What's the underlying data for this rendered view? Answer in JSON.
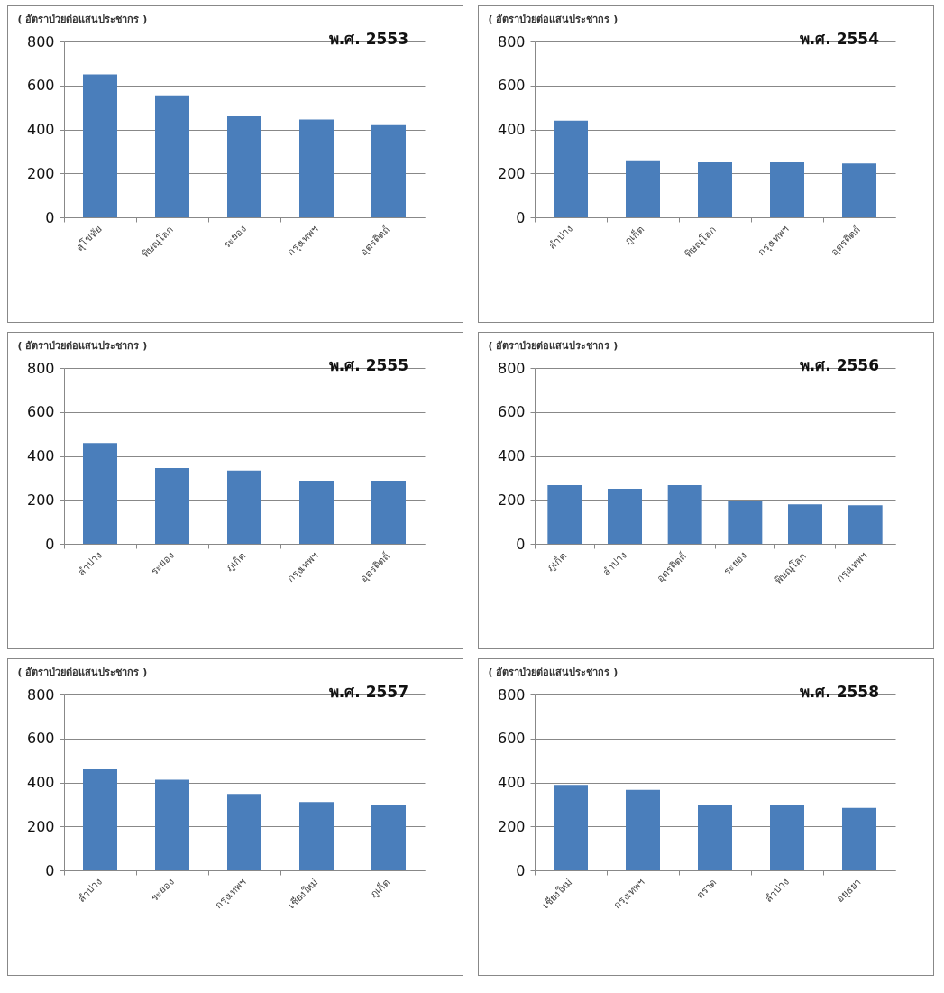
{
  "chart_data": [
    {
      "type": "bar",
      "title": "พ.ศ. 2553",
      "ylabel": "( อัตราป่วยต่อแสนประชากร )",
      "categories": [
        "สุโขทัย",
        "พิษณุโลก",
        "ระยอง",
        "กรุงเทพฯ",
        "อุตรดิตถ์"
      ],
      "values": [
        650,
        555,
        460,
        445,
        420
      ],
      "color": "#4a7ebb",
      "ylim": [
        0,
        800
      ],
      "yticks": [
        0,
        200,
        400,
        600,
        800
      ],
      "grid": "y"
    },
    {
      "type": "bar",
      "title": "พ.ศ. 2554",
      "ylabel": "( อัตราป่วยต่อแสนประชากร )",
      "categories": [
        "ลำปาง",
        "ภูเก็ต",
        "พิษณุโลก",
        "กรุงเทพฯ",
        "อุตรดิตถ์"
      ],
      "values": [
        440,
        260,
        250,
        250,
        245
      ],
      "color": "#4a7ebb",
      "ylim": [
        0,
        800
      ],
      "yticks": [
        0,
        200,
        400,
        600,
        800
      ],
      "grid": "y"
    },
    {
      "type": "bar",
      "title": "พ.ศ. 2555",
      "ylabel": "( อัตราป่วยต่อแสนประชากร )",
      "categories": [
        "ลำปาง",
        "ระยอง",
        "ภูเก็ต",
        "กรุงเทพฯ",
        "อุตรดิตถ์"
      ],
      "values": [
        458,
        345,
        333,
        287,
        287
      ],
      "color": "#4a7ebb",
      "ylim": [
        0,
        800
      ],
      "yticks": [
        0,
        200,
        400,
        600,
        800
      ],
      "grid": "y"
    },
    {
      "type": "bar",
      "title": "พ.ศ. 2556",
      "ylabel": "( อัตราป่วยต่อแสนประชากร )",
      "categories": [
        "ภูเก็ต",
        "ลำปาง",
        "อุตรดิตถ์",
        "ระยอง",
        "พิษณุโลก",
        "กรุงเทพฯ"
      ],
      "values": [
        267,
        250,
        267,
        196,
        180,
        175
      ],
      "color": "#4a7ebb",
      "ylim": [
        0,
        800
      ],
      "yticks": [
        0,
        200,
        400,
        600,
        800
      ],
      "grid": "y"
    },
    {
      "type": "bar",
      "title": "พ.ศ. 2557",
      "ylabel": "( อัตราป่วยต่อแสนประชากร )",
      "categories": [
        "ลำปาง",
        "ระยอง",
        "กรุงเทพฯ",
        "เชียงใหม่",
        "ภูเก็ต"
      ],
      "values": [
        460,
        412,
        348,
        311,
        299
      ],
      "color": "#4a7ebb",
      "ylim": [
        0,
        800
      ],
      "yticks": [
        0,
        200,
        400,
        600,
        800
      ],
      "grid": "y"
    },
    {
      "type": "bar",
      "title": "พ.ศ. 2558",
      "ylabel": "( อัตราป่วยต่อแสนประชากร )",
      "categories": [
        "เชียงใหม่",
        "กรุงเทพฯ",
        "ตราด",
        "ลำปาง",
        "อยุธยา"
      ],
      "values": [
        389,
        366,
        297,
        297,
        284
      ],
      "color": "#4a7ebb",
      "ylim": [
        0,
        800
      ],
      "yticks": [
        0,
        200,
        400,
        600,
        800
      ],
      "grid": "y"
    }
  ]
}
